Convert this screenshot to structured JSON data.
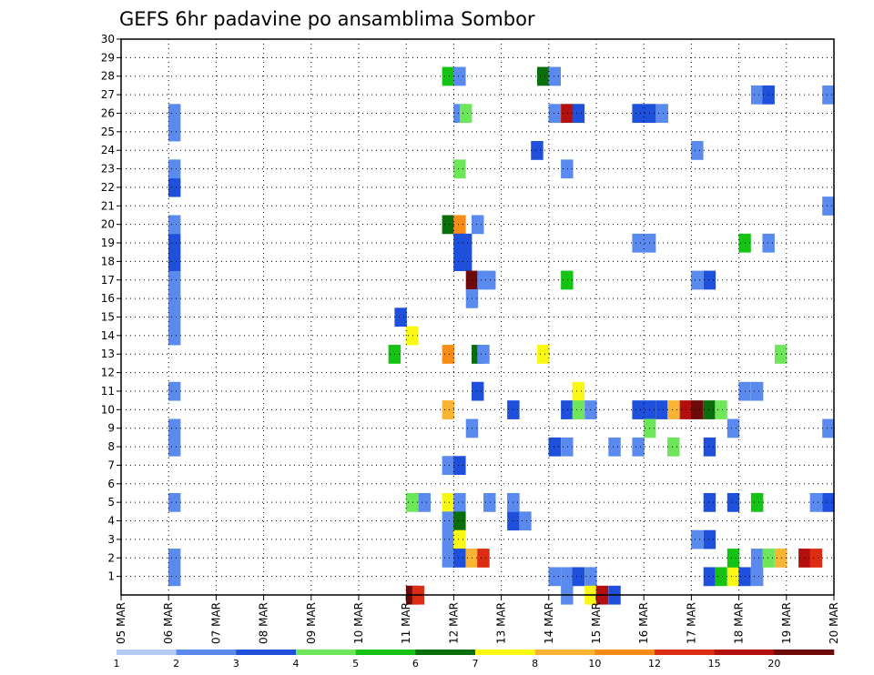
{
  "chart_data": {
    "type": "heatmap",
    "title": "GEFS 6hr padavine po ansamblima Sombor",
    "ylim": [
      0,
      30
    ],
    "grid": true,
    "x_ticks": [
      "05 MAR",
      "06 MAR",
      "07 MAR",
      "08 MAR",
      "09 MAR",
      "10 MAR",
      "11 MAR",
      "12 MAR",
      "13 MAR",
      "14 MAR",
      "15 MAR",
      "16 MAR",
      "17 MAR",
      "18 MAR",
      "19 MAR",
      "20 MAR"
    ],
    "y_ticks": [
      "1",
      "2",
      "3",
      "4",
      "5",
      "6",
      "7",
      "8",
      "9",
      "10",
      "11",
      "12",
      "13",
      "14",
      "15",
      "16",
      "17",
      "18",
      "19",
      "20",
      "21",
      "22",
      "23",
      "24",
      "25",
      "26",
      "27",
      "28",
      "29",
      "30"
    ],
    "legend": {
      "position": "bottom",
      "labels": [
        "1",
        "2",
        "3",
        "4",
        "5",
        "6",
        "7",
        "8",
        "10",
        "12",
        "15",
        "20"
      ],
      "colors": [
        "#b4c8f5",
        "#5a8aee",
        "#1e50dc",
        "#6ee65a",
        "#14c314",
        "#0a6e0a",
        "#f8f814",
        "#f8b432",
        "#f88c14",
        "#dc2d14",
        "#b40f0f",
        "#6e0a0a"
      ]
    },
    "cells": [
      [
        1.12,
        1,
        1
      ],
      [
        1.12,
        2,
        1
      ],
      [
        1.12,
        5,
        1
      ],
      [
        1.12,
        8,
        1
      ],
      [
        1.12,
        9,
        1
      ],
      [
        1.12,
        11,
        1
      ],
      [
        1.12,
        14,
        1
      ],
      [
        1.12,
        15,
        1
      ],
      [
        1.12,
        16,
        1
      ],
      [
        1.12,
        17,
        1
      ],
      [
        1.12,
        18,
        2
      ],
      [
        1.12,
        19,
        2
      ],
      [
        1.12,
        20,
        1
      ],
      [
        1.12,
        22,
        2
      ],
      [
        1.12,
        23,
        1
      ],
      [
        1.12,
        25,
        1
      ],
      [
        1.12,
        26,
        1
      ],
      [
        6.12,
        5,
        3
      ],
      [
        6.12,
        0,
        11
      ],
      [
        6.25,
        0,
        9
      ],
      [
        6.38,
        5,
        1
      ],
      [
        5.75,
        13,
        4
      ],
      [
        5.88,
        15,
        2
      ],
      [
        6.12,
        14,
        6
      ],
      [
        6.88,
        28,
        4
      ],
      [
        7.12,
        28,
        1
      ],
      [
        6.88,
        20,
        5
      ],
      [
        7.12,
        20,
        8
      ],
      [
        7.5,
        20,
        1
      ],
      [
        7.12,
        19,
        2
      ],
      [
        7.25,
        19,
        2
      ],
      [
        7.12,
        18,
        2
      ],
      [
        7.25,
        18,
        2
      ],
      [
        7.38,
        17,
        11
      ],
      [
        7.62,
        17,
        1
      ],
      [
        7.75,
        17,
        1
      ],
      [
        7.38,
        16,
        1
      ],
      [
        7.12,
        26,
        1
      ],
      [
        7.25,
        26,
        3
      ],
      [
        7.12,
        23,
        3
      ],
      [
        6.88,
        13,
        8
      ],
      [
        7.5,
        13,
        5
      ],
      [
        7.62,
        13,
        1
      ],
      [
        7.5,
        11,
        2
      ],
      [
        6.88,
        10,
        7
      ],
      [
        7.38,
        9,
        1
      ],
      [
        6.88,
        7,
        1
      ],
      [
        7.12,
        7,
        2
      ],
      [
        6.88,
        5,
        6
      ],
      [
        7.12,
        5,
        1
      ],
      [
        7.75,
        5,
        1
      ],
      [
        8.25,
        5,
        1
      ],
      [
        6.88,
        4,
        1
      ],
      [
        7.12,
        4,
        5
      ],
      [
        6.88,
        3,
        1
      ],
      [
        7.12,
        3,
        6
      ],
      [
        6.88,
        2,
        1
      ],
      [
        7.12,
        2,
        2
      ],
      [
        7.38,
        2,
        7
      ],
      [
        7.62,
        2,
        9
      ],
      [
        8.25,
        10,
        2
      ],
      [
        8.25,
        4,
        2
      ],
      [
        8.5,
        4,
        1
      ],
      [
        8.25,
        5,
        1
      ],
      [
        8.88,
        28,
        5
      ],
      [
        9.12,
        28,
        1
      ],
      [
        8.75,
        24,
        2
      ],
      [
        8.88,
        13,
        6
      ],
      [
        9.12,
        26,
        1
      ],
      [
        9.38,
        26,
        10
      ],
      [
        9.62,
        26,
        2
      ],
      [
        9.38,
        23,
        1
      ],
      [
        9.38,
        17,
        4
      ],
      [
        9.62,
        11,
        6
      ],
      [
        9.38,
        10,
        2
      ],
      [
        9.62,
        10,
        3
      ],
      [
        9.88,
        10,
        1
      ],
      [
        9.12,
        8,
        2
      ],
      [
        9.38,
        8,
        1
      ],
      [
        9.12,
        1,
        1
      ],
      [
        9.38,
        1,
        1
      ],
      [
        9.38,
        0,
        1
      ],
      [
        9.62,
        1,
        2
      ],
      [
        9.88,
        1,
        1
      ],
      [
        9.88,
        0,
        6
      ],
      [
        10.12,
        0,
        10
      ],
      [
        10.38,
        0,
        2
      ],
      [
        10.38,
        8,
        1
      ],
      [
        10.88,
        8,
        1
      ],
      [
        10.88,
        26,
        2
      ],
      [
        11.12,
        26,
        2
      ],
      [
        11.38,
        26,
        1
      ],
      [
        10.88,
        19,
        1
      ],
      [
        11.12,
        19,
        1
      ],
      [
        10.88,
        10,
        2
      ],
      [
        11.12,
        10,
        2
      ],
      [
        11.38,
        10,
        2
      ],
      [
        11.62,
        10,
        7
      ],
      [
        11.88,
        10,
        10
      ],
      [
        12.12,
        10,
        11
      ],
      [
        12.38,
        10,
        5
      ],
      [
        12.62,
        10,
        3
      ],
      [
        11.12,
        9,
        3
      ],
      [
        11.62,
        8,
        3
      ],
      [
        12.12,
        3,
        1
      ],
      [
        12.38,
        3,
        2
      ],
      [
        12.12,
        24,
        1
      ],
      [
        12.88,
        9,
        1
      ],
      [
        12.12,
        17,
        1
      ],
      [
        12.38,
        17,
        2
      ],
      [
        12.38,
        8,
        2
      ],
      [
        12.38,
        5,
        2
      ],
      [
        12.88,
        5,
        2
      ],
      [
        12.38,
        1,
        2
      ],
      [
        12.62,
        1,
        4
      ],
      [
        12.88,
        1,
        6
      ],
      [
        13.12,
        1,
        2
      ],
      [
        13.38,
        1,
        1
      ],
      [
        12.88,
        2,
        4
      ],
      [
        13.38,
        2,
        1
      ],
      [
        13.62,
        2,
        3
      ],
      [
        13.88,
        2,
        7
      ],
      [
        14.38,
        2,
        10
      ],
      [
        14.62,
        2,
        9
      ],
      [
        13.12,
        19,
        4
      ],
      [
        13.62,
        19,
        1
      ],
      [
        13.12,
        11,
        1
      ],
      [
        13.38,
        11,
        1
      ],
      [
        13.38,
        5,
        4
      ],
      [
        13.38,
        27,
        1
      ],
      [
        13.62,
        27,
        2
      ],
      [
        13.88,
        13,
        3
      ],
      [
        14.88,
        27,
        1
      ],
      [
        14.88,
        21,
        1
      ],
      [
        14.88,
        9,
        1
      ],
      [
        14.62,
        5,
        1
      ],
      [
        14.88,
        5,
        2
      ]
    ]
  }
}
